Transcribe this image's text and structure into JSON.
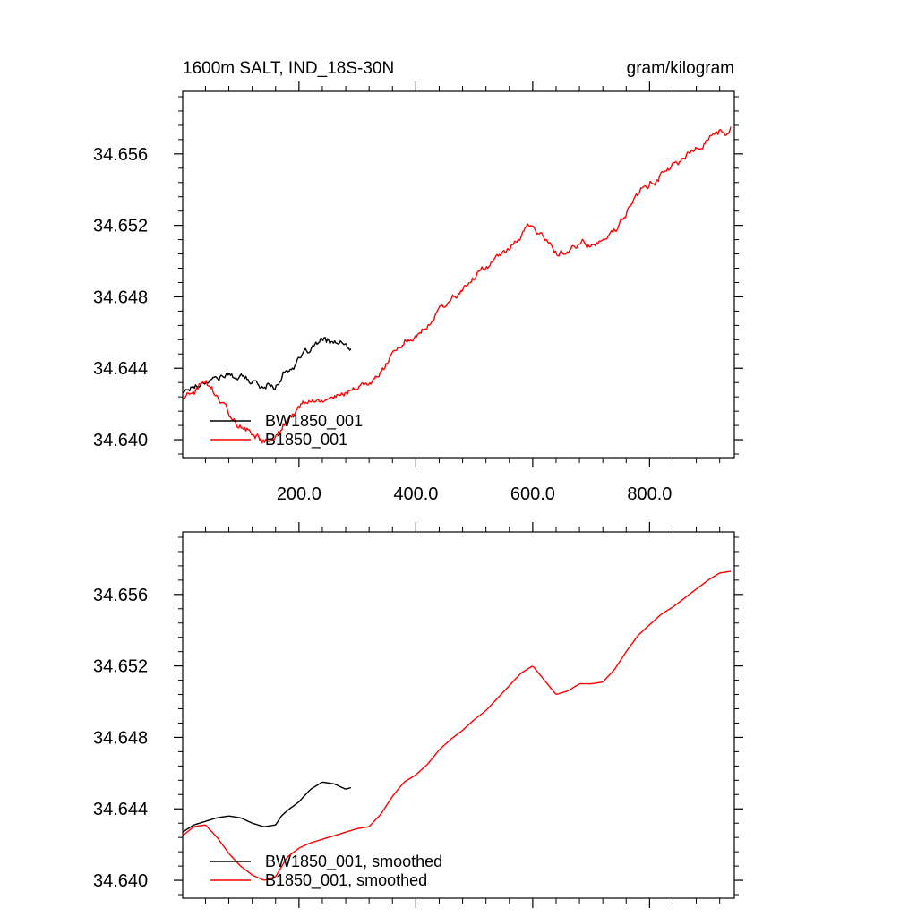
{
  "chart_data": [
    {
      "type": "line",
      "title": "1600m SALT, IND_18S-30N",
      "units": "gram/kilogram",
      "xlabel": "",
      "ylabel": "",
      "xlim": [
        1,
        945
      ],
      "ylim": [
        34.639,
        34.6595
      ],
      "x_ticks": [
        200,
        400,
        600,
        800
      ],
      "x_tick_labels": [
        "200.0",
        "400.0",
        "600.0",
        "800.0"
      ],
      "y_ticks": [
        34.64,
        34.644,
        34.648,
        34.652,
        34.656
      ],
      "y_tick_labels": [
        "34.640",
        "34.644",
        "34.648",
        "34.652",
        "34.656"
      ],
      "legend": "bottom-left",
      "noisy": true,
      "series": [
        {
          "name": "BW1850_001",
          "color": "#000000",
          "x": [
            1,
            20,
            40,
            60,
            80,
            100,
            120,
            140,
            160,
            170,
            180,
            200,
            220,
            240,
            260,
            280,
            290
          ],
          "y": [
            34.6427,
            34.643,
            34.6433,
            34.6435,
            34.6436,
            34.6435,
            34.6432,
            34.643,
            34.643,
            34.6436,
            34.6439,
            34.6444,
            34.6451,
            34.6455,
            34.6455,
            34.6452,
            34.645
          ]
        },
        {
          "name": "B1850_001",
          "color": "#ff0000",
          "x": [
            1,
            20,
            40,
            60,
            80,
            100,
            120,
            140,
            160,
            180,
            200,
            220,
            240,
            260,
            280,
            300,
            320,
            340,
            360,
            380,
            400,
            420,
            440,
            460,
            480,
            500,
            520,
            540,
            560,
            580,
            600,
            620,
            640,
            660,
            680,
            700,
            720,
            740,
            760,
            780,
            800,
            820,
            840,
            860,
            880,
            900,
            920,
            940
          ],
          "y": [
            34.6424,
            34.6427,
            34.6433,
            34.6425,
            34.6415,
            34.6407,
            34.6403,
            34.64,
            34.64,
            34.6412,
            34.6418,
            34.6421,
            34.6422,
            34.6424,
            34.6427,
            34.6429,
            34.643,
            34.6438,
            34.6448,
            34.6456,
            34.6459,
            34.6465,
            34.6473,
            34.6479,
            34.6484,
            34.649,
            34.6495,
            34.6502,
            34.6508,
            34.6515,
            34.652,
            34.6512,
            34.6503,
            34.6506,
            34.651,
            34.651,
            34.651,
            34.6518,
            34.6527,
            34.6537,
            34.6543,
            34.6549,
            34.6553,
            34.6558,
            34.6563,
            34.6568,
            34.6572,
            34.6574
          ]
        }
      ]
    },
    {
      "type": "line",
      "title": "",
      "xlabel": "",
      "ylabel": "",
      "xlim": [
        1,
        945
      ],
      "ylim": [
        34.639,
        34.6595
      ],
      "x_ticks": [
        200,
        400,
        600,
        800
      ],
      "x_tick_labels": [],
      "y_ticks": [
        34.64,
        34.644,
        34.648,
        34.652,
        34.656
      ],
      "y_tick_labels": [
        "34.640",
        "34.644",
        "34.648",
        "34.652",
        "34.656"
      ],
      "legend": "bottom-left",
      "noisy": false,
      "series": [
        {
          "name": "BW1850_001, smoothed",
          "color": "#000000",
          "x": [
            1,
            20,
            40,
            60,
            80,
            100,
            120,
            140,
            160,
            170,
            180,
            200,
            220,
            240,
            260,
            280,
            290
          ],
          "y": [
            34.6427,
            34.6431,
            34.6433,
            34.6435,
            34.6436,
            34.6435,
            34.6432,
            34.643,
            34.6431,
            34.6436,
            34.6439,
            34.6444,
            34.6451,
            34.6455,
            34.6454,
            34.6451,
            34.6452
          ]
        },
        {
          "name": "B1850_001, smoothed",
          "color": "#ff0000",
          "x": [
            1,
            20,
            40,
            60,
            80,
            100,
            120,
            140,
            160,
            180,
            200,
            220,
            240,
            260,
            280,
            300,
            320,
            340,
            360,
            380,
            400,
            420,
            440,
            460,
            480,
            500,
            520,
            540,
            560,
            580,
            600,
            620,
            640,
            660,
            680,
            700,
            720,
            740,
            760,
            780,
            800,
            820,
            840,
            860,
            880,
            900,
            920,
            940
          ],
          "y": [
            34.6425,
            34.643,
            34.6431,
            34.6424,
            34.6415,
            34.6408,
            34.6403,
            34.64,
            34.6402,
            34.6413,
            34.6418,
            34.6421,
            34.6423,
            34.6425,
            34.6427,
            34.6429,
            34.643,
            34.6437,
            34.6447,
            34.6455,
            34.6459,
            34.6465,
            34.6473,
            34.6479,
            34.6484,
            34.649,
            34.6495,
            34.6502,
            34.6509,
            34.6516,
            34.652,
            34.6512,
            34.6504,
            34.6506,
            34.651,
            34.651,
            34.6511,
            34.6518,
            34.6528,
            34.6537,
            34.6543,
            34.6549,
            34.6553,
            34.6558,
            34.6563,
            34.6568,
            34.6572,
            34.6573
          ]
        }
      ]
    }
  ]
}
